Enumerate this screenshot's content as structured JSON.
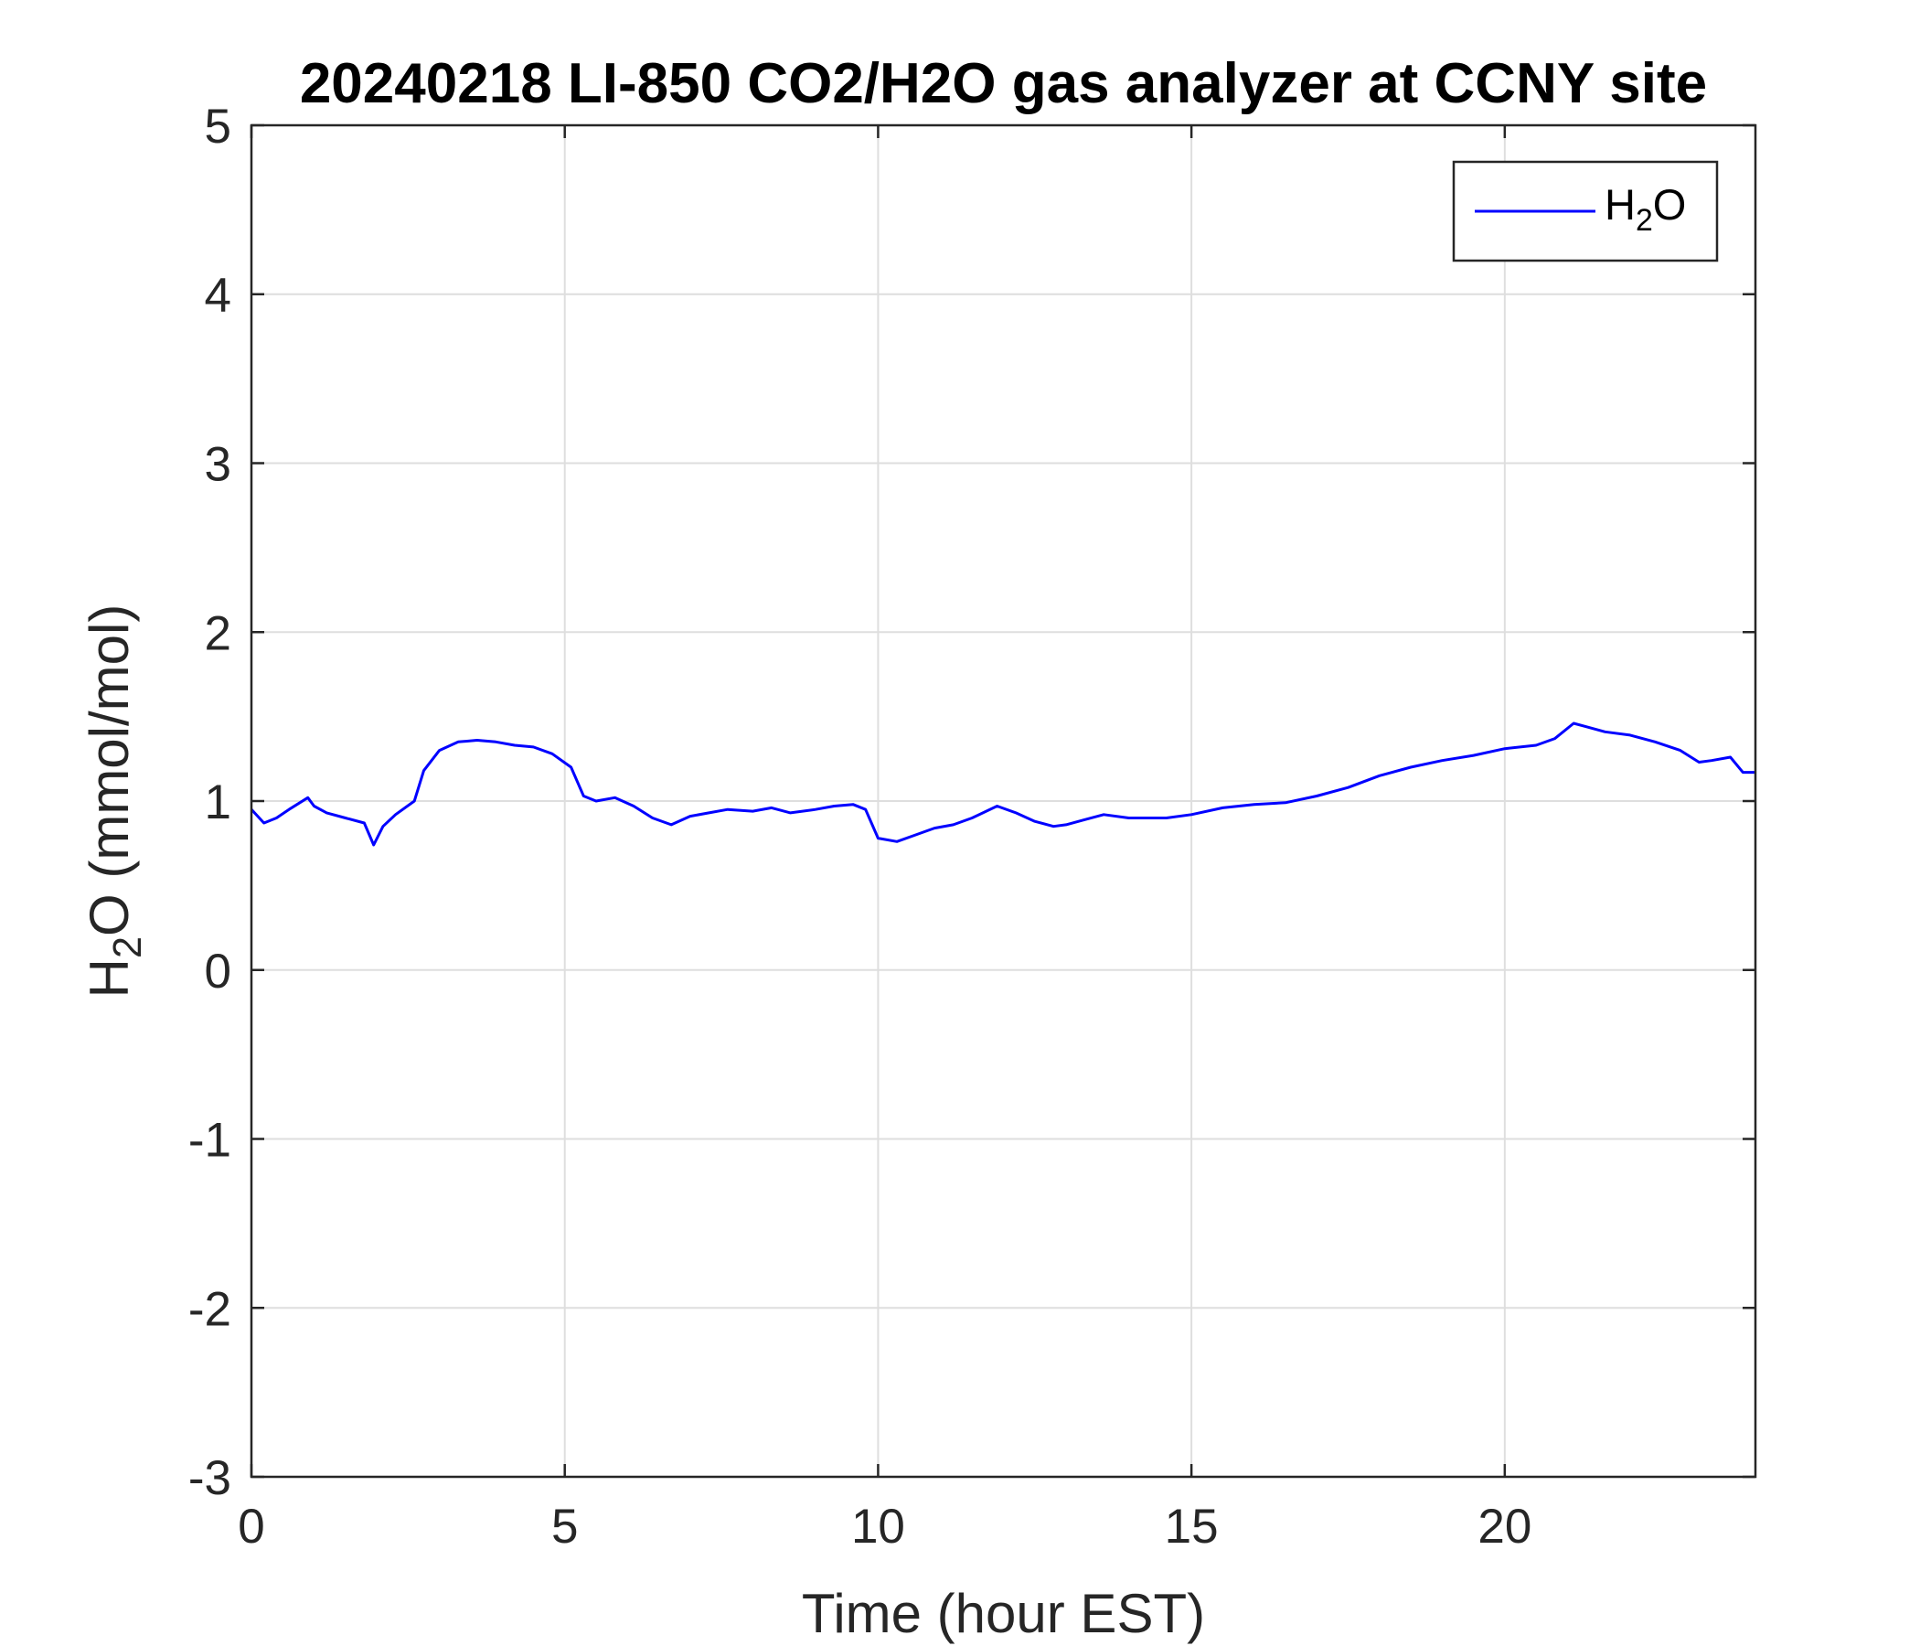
{
  "chart_data": {
    "type": "line",
    "title": "20240218 LI-850 CO2/H2O gas analyzer at CCNY site",
    "xlabel": "Time (hour EST)",
    "ylabel": {
      "base": "H",
      "sub": "2",
      "rest": "O (mmol/mol)"
    },
    "xlim": [
      0,
      24
    ],
    "ylim": [
      -3,
      5
    ],
    "xticks": [
      0,
      5,
      10,
      15,
      20
    ],
    "yticks": [
      -3,
      -2,
      -1,
      0,
      1,
      2,
      3,
      4,
      5
    ],
    "xtick_labels": [
      "0",
      "5",
      "10",
      "15",
      "20"
    ],
    "ytick_labels": [
      "-3",
      "-2",
      "-1",
      "0",
      "1",
      "2",
      "3",
      "4",
      "5"
    ],
    "grid": true,
    "legend_position": "top-right",
    "series": [
      {
        "name": {
          "base": "H",
          "sub": "2",
          "rest": "O"
        },
        "color": "#0000ff",
        "x": [
          0,
          0.2,
          0.4,
          0.6,
          0.9,
          1.0,
          1.2,
          1.5,
          1.8,
          1.95,
          2.1,
          2.3,
          2.6,
          2.75,
          3.0,
          3.3,
          3.6,
          3.9,
          4.2,
          4.5,
          4.8,
          5.1,
          5.3,
          5.5,
          5.8,
          6.1,
          6.4,
          6.7,
          7.0,
          7.3,
          7.6,
          8.0,
          8.3,
          8.6,
          9.0,
          9.3,
          9.6,
          9.8,
          10.0,
          10.3,
          10.6,
          10.9,
          11.2,
          11.5,
          11.9,
          12.2,
          12.5,
          12.8,
          13.0,
          13.3,
          13.6,
          14.0,
          14.3,
          14.6,
          15.0,
          15.5,
          16.0,
          16.5,
          17.0,
          17.5,
          18.0,
          18.5,
          19.0,
          19.5,
          20.0,
          20.5,
          20.8,
          21.1,
          21.3,
          21.6,
          22.0,
          22.4,
          22.8,
          23.1,
          23.3,
          23.6,
          23.8,
          24.0
        ],
        "y": [
          0.95,
          0.87,
          0.9,
          0.95,
          1.02,
          0.97,
          0.93,
          0.9,
          0.87,
          0.74,
          0.85,
          0.92,
          1.0,
          1.18,
          1.3,
          1.35,
          1.36,
          1.35,
          1.33,
          1.32,
          1.28,
          1.2,
          1.03,
          1.0,
          1.02,
          0.97,
          0.9,
          0.86,
          0.91,
          0.93,
          0.95,
          0.94,
          0.96,
          0.93,
          0.95,
          0.97,
          0.98,
          0.95,
          0.78,
          0.76,
          0.8,
          0.84,
          0.86,
          0.9,
          0.97,
          0.93,
          0.88,
          0.85,
          0.86,
          0.89,
          0.92,
          0.9,
          0.9,
          0.9,
          0.92,
          0.96,
          0.98,
          0.99,
          1.03,
          1.08,
          1.15,
          1.2,
          1.24,
          1.27,
          1.31,
          1.33,
          1.37,
          1.46,
          1.44,
          1.41,
          1.39,
          1.35,
          1.3,
          1.23,
          1.24,
          1.26,
          1.17,
          1.17
        ]
      }
    ]
  }
}
